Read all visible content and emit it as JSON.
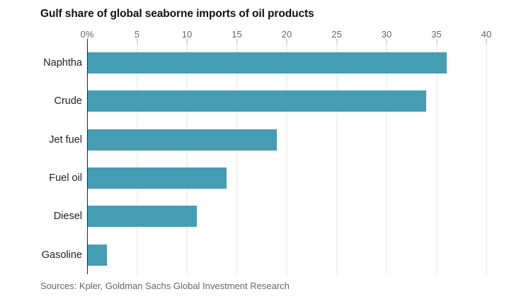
{
  "chart": {
    "title": "Gulf share of global seaborne imports of oil products",
    "source": "Sources: Kpler, Goldman Sachs Global Investment Research"
  },
  "chart_data": {
    "type": "bar",
    "orientation": "horizontal",
    "title": "Gulf share of global seaborne imports of oil products",
    "categories": [
      "Naphtha",
      "Crude",
      "Jet fuel",
      "Fuel oil",
      "Diesel",
      "Gasoline"
    ],
    "values": [
      36,
      34,
      19,
      14,
      11,
      2
    ],
    "xlabel": "",
    "ylabel": "",
    "xlim": [
      0,
      40
    ],
    "ticks": [
      0,
      5,
      10,
      15,
      20,
      25,
      30,
      35,
      40
    ],
    "tick_labels": [
      "0%",
      "5",
      "10",
      "15",
      "20",
      "25",
      "30",
      "35",
      "40"
    ],
    "grid": true,
    "legend": "none",
    "bar_color": "#459db3",
    "source": "Sources: Kpler, Goldman Sachs Global Investment Research"
  }
}
